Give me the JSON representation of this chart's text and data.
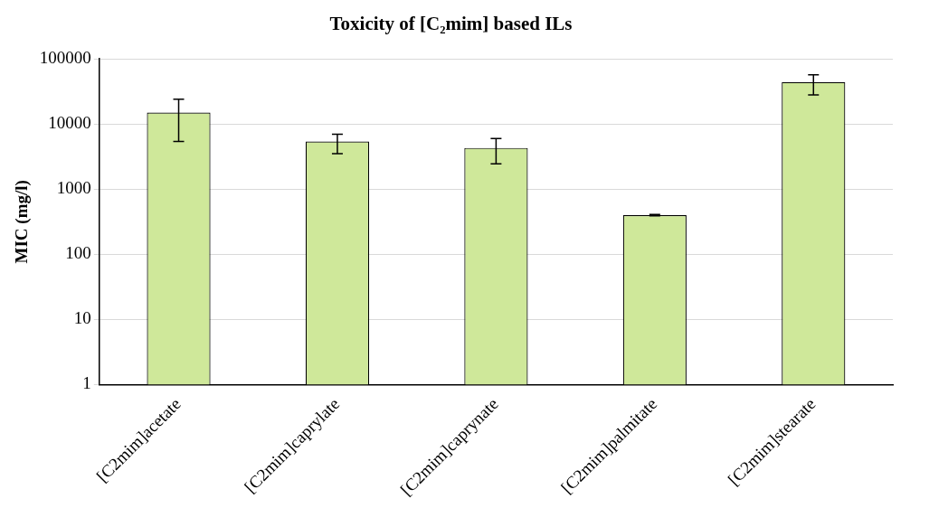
{
  "chart_data": {
    "type": "bar",
    "title": "Toxicity of [C₂mim] based ILs",
    "ylabel": "MIC (mg/l)",
    "categories": [
      "[C2mim]acetate",
      "[C2mim]caprylate",
      "[C2mim]caprynate",
      "[C2mim]palmitate",
      "[C2mim]stearate"
    ],
    "values": [
      15000,
      5400,
      4300,
      400,
      44000
    ],
    "errors": [
      [
        5400,
        24000
      ],
      [
        3500,
        7000
      ],
      [
        2450,
        6000
      ],
      [
        390,
        410
      ],
      [
        28000,
        57000
      ]
    ],
    "color": "#cfe89a",
    "log": "y",
    "ylim": [
      1,
      100000
    ],
    "yticks": [
      1,
      10,
      100,
      1000,
      10000,
      100000
    ],
    "grid": "y",
    "legend": false
  }
}
